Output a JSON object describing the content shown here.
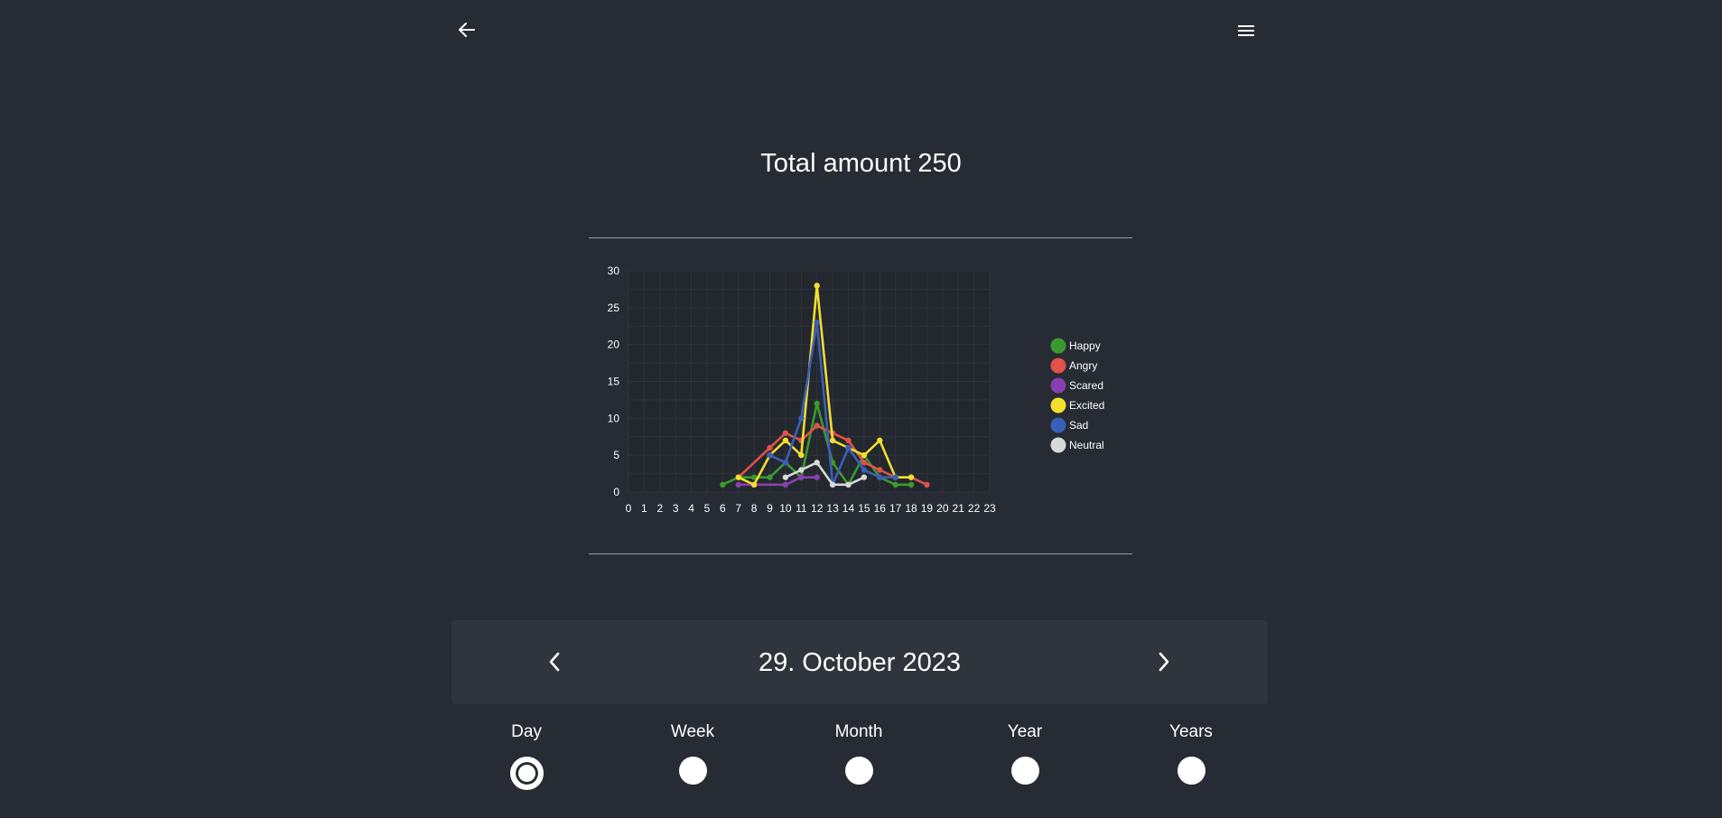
{
  "header": {
    "back_icon": "arrow-left-icon",
    "menu_icon": "hamburger-menu-icon"
  },
  "title": "Total amount 250",
  "date_nav": {
    "prev_icon": "chevron-left-icon",
    "next_icon": "chevron-right-icon",
    "date": "29. October 2023"
  },
  "periods": [
    {
      "label": "Day",
      "selected": true
    },
    {
      "label": "Week",
      "selected": false
    },
    {
      "label": "Month",
      "selected": false
    },
    {
      "label": "Year",
      "selected": false
    },
    {
      "label": "Years",
      "selected": false
    }
  ],
  "chart_data": {
    "type": "line",
    "x": [
      0,
      1,
      2,
      3,
      4,
      5,
      6,
      7,
      8,
      9,
      10,
      11,
      12,
      13,
      14,
      15,
      16,
      17,
      18,
      19,
      20,
      21,
      22,
      23
    ],
    "ylim": [
      0,
      30
    ],
    "yticks": [
      0,
      5,
      10,
      15,
      20,
      25,
      30
    ],
    "grid": true,
    "legend_position": "right",
    "series": [
      {
        "name": "Happy",
        "color": "#3a9a2e",
        "points": [
          [
            6,
            1
          ],
          [
            7,
            2
          ],
          [
            8,
            2
          ],
          [
            9,
            2
          ],
          [
            10,
            4
          ],
          [
            11,
            2
          ],
          [
            12,
            12
          ],
          [
            13,
            4
          ],
          [
            14,
            1
          ],
          [
            15,
            5
          ],
          [
            16,
            2
          ],
          [
            17,
            1
          ],
          [
            18,
            1
          ]
        ]
      },
      {
        "name": "Angry",
        "color": "#e0524a",
        "points": [
          [
            7,
            2
          ],
          [
            9,
            6
          ],
          [
            10,
            8
          ],
          [
            11,
            7
          ],
          [
            12,
            9
          ],
          [
            13,
            8
          ],
          [
            14,
            7
          ],
          [
            15,
            4
          ],
          [
            16,
            3
          ],
          [
            17,
            2
          ],
          [
            18,
            2
          ],
          [
            19,
            1
          ]
        ]
      },
      {
        "name": "Scared",
        "color": "#8a3fb0",
        "points": [
          [
            7,
            1
          ],
          [
            8,
            1
          ],
          [
            10,
            1
          ],
          [
            11,
            2
          ],
          [
            12,
            2
          ]
        ]
      },
      {
        "name": "Excited",
        "color": "#f4de2e",
        "points": [
          [
            7,
            2
          ],
          [
            8,
            1
          ],
          [
            9,
            5
          ],
          [
            10,
            7
          ],
          [
            11,
            5
          ],
          [
            12,
            28
          ],
          [
            13,
            7
          ],
          [
            14,
            6
          ],
          [
            15,
            5
          ],
          [
            16,
            7
          ],
          [
            17,
            2
          ],
          [
            18,
            2
          ]
        ]
      },
      {
        "name": "Sad",
        "color": "#3a5fb8",
        "points": [
          [
            9,
            5
          ],
          [
            10,
            4
          ],
          [
            11,
            10
          ],
          [
            12,
            23
          ],
          [
            13,
            1
          ],
          [
            14,
            6
          ],
          [
            15,
            3
          ],
          [
            16,
            2
          ],
          [
            17,
            2
          ]
        ]
      },
      {
        "name": "Neutral",
        "color": "#d9d9d9",
        "points": [
          [
            10,
            2
          ],
          [
            11,
            3
          ],
          [
            12,
            4
          ],
          [
            13,
            1
          ],
          [
            14,
            1
          ],
          [
            15,
            2
          ]
        ]
      }
    ]
  }
}
